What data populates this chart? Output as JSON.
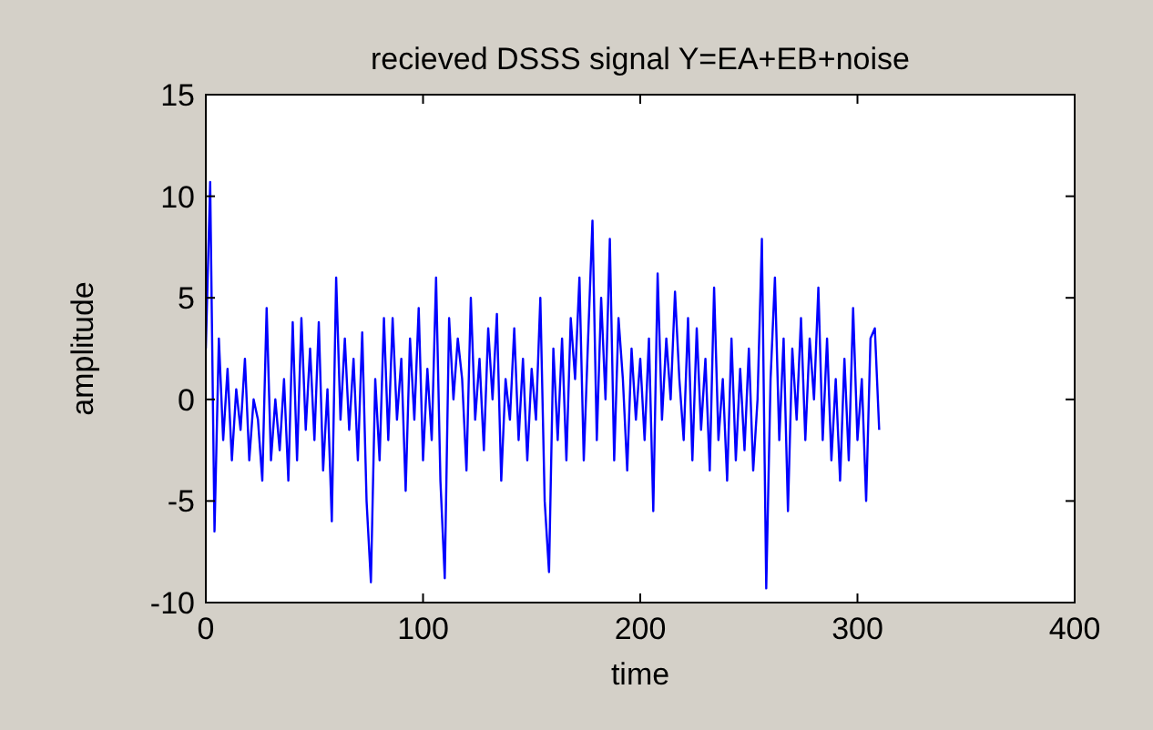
{
  "chart_data": {
    "type": "line",
    "title": "recieved DSSS signal Y=EA+EB+noise",
    "xlabel": "time",
    "ylabel": "amplitude",
    "xlim": [
      0,
      400
    ],
    "ylim": [
      -10,
      15
    ],
    "xticks": [
      0,
      100,
      200,
      300,
      400
    ],
    "yticks": [
      -10,
      -5,
      0,
      5,
      10,
      15
    ],
    "grid": false,
    "series": [
      {
        "color": "#0000ff",
        "x": [
          0,
          2,
          4,
          6,
          8,
          10,
          12,
          14,
          16,
          18,
          20,
          22,
          24,
          26,
          28,
          30,
          32,
          34,
          36,
          38,
          40,
          42,
          44,
          46,
          48,
          50,
          52,
          54,
          56,
          58,
          60,
          62,
          64,
          66,
          68,
          70,
          72,
          74,
          76,
          78,
          80,
          82,
          84,
          86,
          88,
          90,
          92,
          94,
          96,
          98,
          100,
          102,
          104,
          106,
          108,
          110,
          112,
          114,
          116,
          118,
          120,
          122,
          124,
          126,
          128,
          130,
          132,
          134,
          136,
          138,
          140,
          142,
          144,
          146,
          148,
          150,
          152,
          154,
          156,
          158,
          160,
          162,
          164,
          166,
          168,
          170,
          172,
          174,
          176,
          178,
          180,
          182,
          184,
          186,
          188,
          190,
          192,
          194,
          196,
          198,
          200,
          202,
          204,
          206,
          208,
          210,
          212,
          214,
          216,
          218,
          220,
          222,
          224,
          226,
          228,
          230,
          232,
          234,
          236,
          238,
          240,
          242,
          244,
          246,
          248,
          250,
          252,
          254,
          256,
          258,
          260,
          262,
          264,
          266,
          268,
          270,
          272,
          274,
          276,
          278,
          280,
          282,
          284,
          286,
          288,
          290,
          292,
          294,
          296,
          298,
          300,
          302,
          304,
          306,
          308,
          310
        ],
        "values": [
          2.5,
          10.7,
          -6.5,
          3,
          -2,
          1.5,
          -3,
          0.5,
          -1.5,
          2,
          -3,
          0,
          -1,
          -4,
          4.5,
          -3,
          0,
          -2.5,
          1,
          -4,
          3.8,
          -3,
          4,
          -1.5,
          2.5,
          -2,
          3.8,
          -3.5,
          0.5,
          -6,
          6,
          -1,
          3,
          -1.5,
          2,
          -3,
          3.3,
          -5,
          -9,
          1,
          -3,
          4,
          -2,
          4,
          -1,
          2,
          -4.5,
          3,
          -1,
          4.5,
          -3,
          1.5,
          -2,
          6,
          -4,
          -8.8,
          4,
          0,
          3,
          1,
          -3.5,
          5,
          -1,
          2,
          -2.5,
          3.5,
          0,
          4.2,
          -4,
          1,
          -1,
          3.5,
          -2,
          2,
          -3,
          1.5,
          -1,
          5,
          -5,
          -8.5,
          2.5,
          -2,
          3,
          -3,
          4,
          1,
          6,
          -3,
          3,
          8.8,
          -2,
          5,
          0,
          7.9,
          -3,
          4,
          1,
          -3.5,
          2.5,
          -1,
          2,
          -2,
          3,
          -5.5,
          6.2,
          -1,
          3,
          0,
          5.3,
          1,
          -2,
          4,
          -3,
          3.5,
          -1.5,
          2,
          -3.5,
          5.5,
          -2,
          1,
          -4,
          3,
          -3,
          1.5,
          -2.5,
          2.5,
          -3.5,
          0,
          7.9,
          -9.3,
          1,
          6,
          -2,
          3,
          -5.5,
          2.5,
          -1,
          4,
          -2,
          3,
          0,
          5.5,
          -2,
          3,
          -3,
          1,
          -4,
          2,
          -3,
          4.5,
          -2,
          1,
          -5,
          3,
          3.5,
          -1.5
        ]
      }
    ]
  }
}
